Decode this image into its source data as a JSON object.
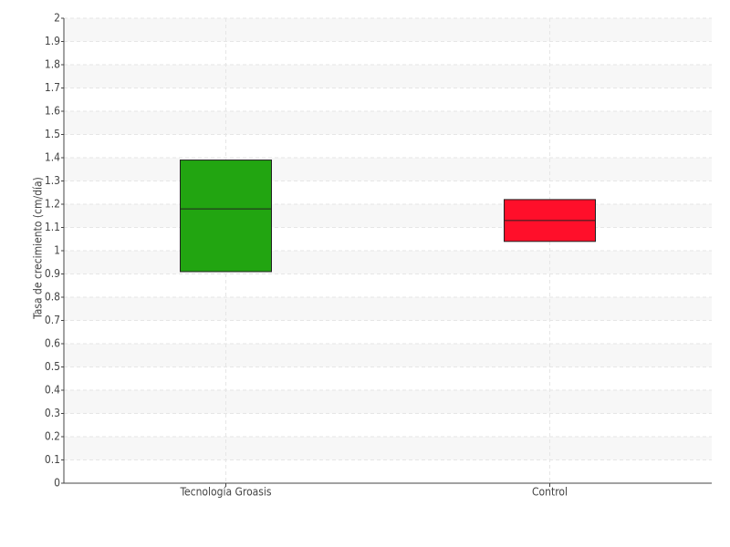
{
  "chart_data": {
    "type": "box",
    "y_label": "Tasa de crecimiento (cm/día)",
    "categories": [
      "Tecnología Groasis",
      "Control"
    ],
    "q1": [
      0.91,
      1.04
    ],
    "median": [
      1.18,
      1.13
    ],
    "q3": [
      1.39,
      1.22
    ],
    "colors": [
      "#22a511",
      "#ff0f2a"
    ],
    "ylim": [
      0,
      2
    ],
    "yticks": [
      0,
      0.1,
      0.2,
      0.3,
      0.4,
      0.5,
      0.6,
      0.7,
      0.8,
      0.9,
      1,
      1.1,
      1.2,
      1.3,
      1.4,
      1.5,
      1.6,
      1.7,
      1.8,
      1.9,
      2
    ],
    "grid": true
  }
}
